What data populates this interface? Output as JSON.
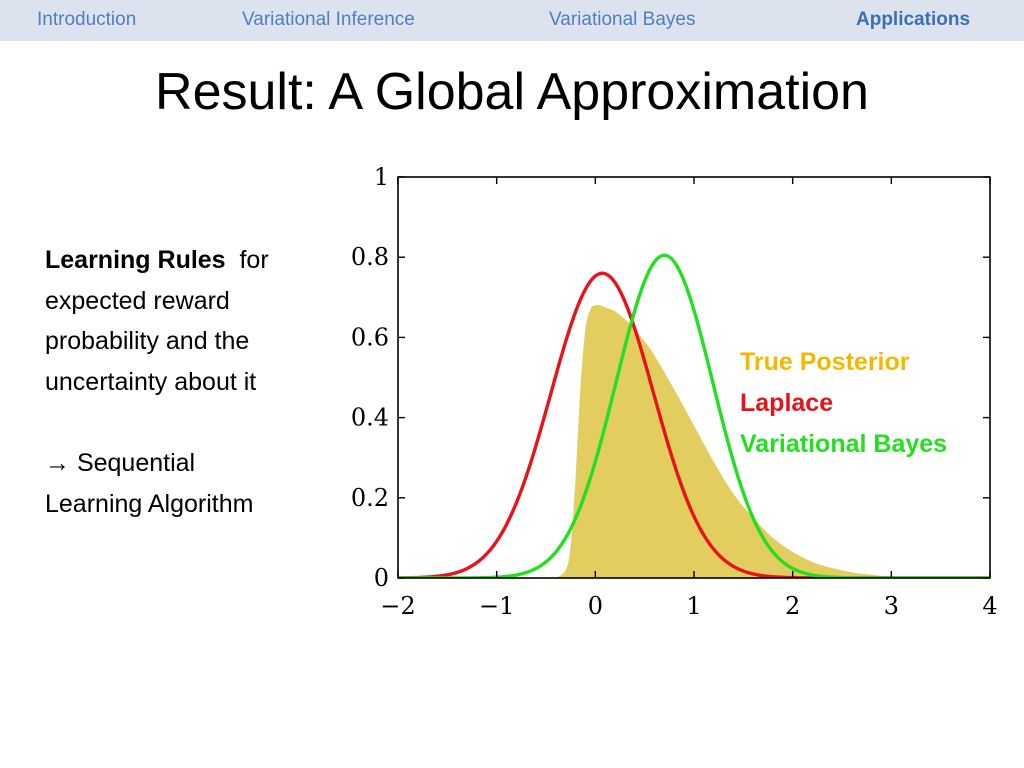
{
  "nav": {
    "items": [
      {
        "label": "Introduction",
        "active": false
      },
      {
        "label": "Variational Inference",
        "active": false
      },
      {
        "label": "Variational Bayes",
        "active": false
      },
      {
        "label": "Applications",
        "active": true
      }
    ]
  },
  "slide": {
    "title": "Result: A Global Approximation",
    "body": {
      "bold_lead": "Learning Rules",
      "line1_rest": "  for",
      "line2": "expected reward",
      "line3": "probability and the",
      "line4": "uncertainty about it",
      "arrow_icon": "right-arrow-icon",
      "arrow_glyph": "→",
      "line5": " Sequential",
      "line6": "Learning Algorithm"
    }
  },
  "chart_data": {
    "type": "area",
    "xlim": [
      -2,
      4
    ],
    "ylim": [
      0,
      1
    ],
    "x_ticks": [
      "−2",
      "−1",
      "0",
      "1",
      "2",
      "3",
      "4"
    ],
    "x_tick_values": [
      -2,
      -1,
      0,
      1,
      2,
      3,
      4
    ],
    "y_ticks": [
      "0",
      "0.2",
      "0.4",
      "0.6",
      "0.8",
      "1"
    ],
    "y_tick_values": [
      0,
      0.2,
      0.4,
      0.6,
      0.8,
      1
    ],
    "grid": false,
    "legend_position": "right",
    "series": [
      {
        "name": "True Posterior",
        "kind": "filled-area",
        "color": "#e3cd5f",
        "legend_color": "#f5b800",
        "x": [
          -0.4,
          -0.3,
          -0.25,
          -0.2,
          -0.15,
          -0.1,
          -0.05,
          0,
          0.05,
          0.1,
          0.2,
          0.3,
          0.4,
          0.5,
          0.6,
          0.8,
          1.0,
          1.2,
          1.4,
          1.6,
          1.8,
          2.0,
          2.2,
          2.4,
          2.6,
          2.8,
          3.0,
          3.5,
          4.0
        ],
        "y": [
          0,
          0.02,
          0.08,
          0.25,
          0.48,
          0.62,
          0.67,
          0.68,
          0.68,
          0.675,
          0.665,
          0.645,
          0.62,
          0.59,
          0.555,
          0.47,
          0.38,
          0.29,
          0.21,
          0.15,
          0.1,
          0.065,
          0.04,
          0.025,
          0.014,
          0.008,
          0.004,
          0.001,
          0
        ]
      },
      {
        "name": "Laplace",
        "kind": "gaussian",
        "color": "#e8131a",
        "mean": 0.07,
        "peak": 0.76,
        "sigma": 0.52
      },
      {
        "name": "Variational Bayes",
        "kind": "gaussian",
        "color": "#22e01f",
        "mean": 0.7,
        "peak": 0.805,
        "sigma": 0.49
      }
    ]
  }
}
